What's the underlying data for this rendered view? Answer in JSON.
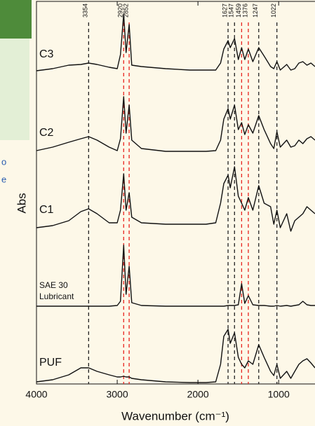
{
  "chart_data": {
    "type": "line",
    "x_label": "Wavenumber (cm⁻¹)",
    "y_label": "Abs",
    "side_fragments": [
      "o",
      "e"
    ],
    "x": [
      4000,
      3800,
      3600,
      3450,
      3354,
      3250,
      3100,
      3000,
      2960,
      2920,
      2890,
      2852,
      2820,
      2700,
      2400,
      2100,
      1900,
      1780,
      1720,
      1680,
      1627,
      1600,
      1547,
      1500,
      1459,
      1420,
      1376,
      1320,
      1247,
      1180,
      1100,
      1060,
      1022,
      980,
      900,
      850,
      800,
      750,
      700,
      650,
      600,
      550
    ],
    "xlim": [
      4000,
      550
    ],
    "xticks": [
      4000,
      3000,
      2000,
      1000
    ],
    "ylim": [
      0,
      546
    ],
    "peak_lines": [
      {
        "value": 3354,
        "color": "#222"
      },
      {
        "value": 2920,
        "color": "#e8231e"
      },
      {
        "value": 2852,
        "color": "#e8231e"
      },
      {
        "value": 1627,
        "color": "#222"
      },
      {
        "value": 1547,
        "color": "#222"
      },
      {
        "value": 1459,
        "color": "#e8231e"
      },
      {
        "value": 1376,
        "color": "#e8231e"
      },
      {
        "value": 1247,
        "color": "#222"
      },
      {
        "value": 1022,
        "color": "#222"
      }
    ],
    "series": [
      {
        "name": "C3",
        "color": "#111",
        "values": [
          447,
          450,
          455,
          456,
          458,
          456,
          452,
          450,
          470,
          528,
          473,
          513,
          455,
          453,
          450,
          448,
          448,
          448,
          458,
          478,
          490,
          480,
          493,
          463,
          480,
          463,
          478,
          460,
          480,
          468,
          453,
          450,
          460,
          448,
          456,
          448,
          450,
          458,
          460,
          455,
          458,
          453
        ]
      },
      {
        "name": "C2",
        "color": "#111",
        "values": [
          333,
          338,
          345,
          350,
          353,
          348,
          338,
          333,
          350,
          410,
          358,
          398,
          348,
          336,
          332,
          332,
          332,
          333,
          348,
          378,
          393,
          378,
          398,
          363,
          373,
          356,
          370,
          358,
          383,
          363,
          343,
          336,
          360,
          338,
          348,
          338,
          340,
          348,
          343,
          350,
          353,
          348
        ]
      },
      {
        "name": "C1",
        "color": "#111",
        "values": [
          223,
          226,
          233,
          246,
          250,
          243,
          230,
          230,
          248,
          300,
          248,
          273,
          238,
          230,
          228,
          228,
          228,
          230,
          258,
          286,
          298,
          280,
          310,
          268,
          258,
          248,
          266,
          248,
          283,
          258,
          253,
          228,
          248,
          223,
          243,
          218,
          233,
          238,
          243,
          253,
          248,
          243
        ]
      },
      {
        "name": "SAE 30 Lubricant",
        "color": "#111",
        "values": [
          111,
          111,
          111,
          111,
          111,
          111,
          111,
          112,
          118,
          198,
          128,
          168,
          116,
          112,
          111,
          111,
          111,
          111,
          111,
          111,
          112,
          112,
          112,
          113,
          143,
          115,
          126,
          113,
          112,
          112,
          111,
          111,
          112,
          111,
          112,
          111,
          112,
          113,
          118,
          113,
          112,
          112
        ]
      },
      {
        "name": "PUF",
        "color": "#111",
        "values": [
          3,
          6,
          13,
          23,
          23,
          18,
          13,
          10,
          10,
          11,
          10,
          10,
          8,
          6,
          3,
          2,
          2,
          3,
          28,
          68,
          78,
          58,
          73,
          38,
          28,
          23,
          33,
          28,
          56,
          38,
          18,
          12,
          28,
          8,
          18,
          8,
          18,
          28,
          33,
          36,
          30,
          23
        ]
      }
    ]
  }
}
